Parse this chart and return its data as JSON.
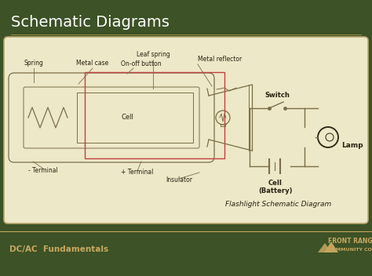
{
  "title": "Schematic Diagrams",
  "bg_color": "#3d5226",
  "panel_color": "#ede8c8",
  "panel_edge_color": "#b8a870",
  "title_color": "#ffffff",
  "line_color": "#7a6e48",
  "label_color": "#2a2010",
  "footer_text_left": "DC/AC  Fundamentals",
  "footer_color": "#c8a860",
  "schematic_label": "Flashlight Schematic Diagram",
  "red_box_color": "#c04040",
  "flashlight_labels": {
    "spring": "Spring",
    "metal_case": "Metal case",
    "on_off_button": "On-off button",
    "leaf_spring": "Leaf spring",
    "metal_reflector": "Metal reflector",
    "cell": "Cell",
    "neg_terminal": "- Terminal",
    "pos_terminal": "+ Terminal",
    "insulator": "Insulator"
  },
  "circuit_labels": {
    "switch": "Switch",
    "lamp": "Lamp",
    "cell": "Cell\n(Battery)"
  }
}
